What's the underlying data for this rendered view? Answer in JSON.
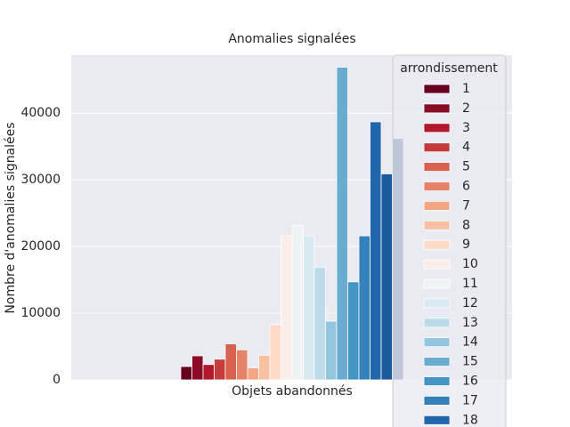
{
  "chart_data": {
    "type": "bar",
    "title": "Anomalies signalées",
    "xlabel": "Objets abandonnés",
    "ylabel": "Nombre d'anomalies signalées",
    "categories": [
      "Objets abandonnés"
    ],
    "legend_title": "arrondissement",
    "ylim": [
      0,
      48700
    ],
    "yticks": [
      0,
      10000,
      20000,
      30000,
      40000
    ],
    "grid": true,
    "series": [
      {
        "name": "1",
        "color": "#67001f",
        "values": [
          2000
        ]
      },
      {
        "name": "2",
        "color": "#8a0b25",
        "values": [
          3600
        ]
      },
      {
        "name": "3",
        "color": "#b2182b",
        "values": [
          2300
        ]
      },
      {
        "name": "4",
        "color": "#c43c3c",
        "values": [
          3100
        ]
      },
      {
        "name": "5",
        "color": "#d6604d",
        "values": [
          5400
        ]
      },
      {
        "name": "6",
        "color": "#e58368",
        "values": [
          4500
        ]
      },
      {
        "name": "7",
        "color": "#f4a582",
        "values": [
          1800
        ]
      },
      {
        "name": "8",
        "color": "#f8c0a2",
        "values": [
          3700
        ]
      },
      {
        "name": "9",
        "color": "#fddbc7",
        "values": [
          8300
        ]
      },
      {
        "name": "10",
        "color": "#fbeee8",
        "values": [
          21600
        ]
      },
      {
        "name": "11",
        "color": "#eef3f6",
        "values": [
          23200
        ]
      },
      {
        "name": "12",
        "color": "#d9e9f1",
        "values": [
          21600
        ]
      },
      {
        "name": "13",
        "color": "#bcdaea",
        "values": [
          16900
        ]
      },
      {
        "name": "14",
        "color": "#92c5de",
        "values": [
          8800
        ]
      },
      {
        "name": "15",
        "color": "#6aacd0",
        "values": [
          46900
        ]
      },
      {
        "name": "16",
        "color": "#4393c3",
        "values": [
          14700
        ]
      },
      {
        "name": "17",
        "color": "#3581b9",
        "values": [
          21600
        ]
      },
      {
        "name": "18",
        "color": "#2166ac",
        "values": [
          38700
        ]
      },
      {
        "name": null,
        "color": "#1a5a9c",
        "values": [
          30900
        ]
      },
      {
        "name": null,
        "color": "#0b3c74",
        "values": [
          36200
        ]
      }
    ]
  }
}
